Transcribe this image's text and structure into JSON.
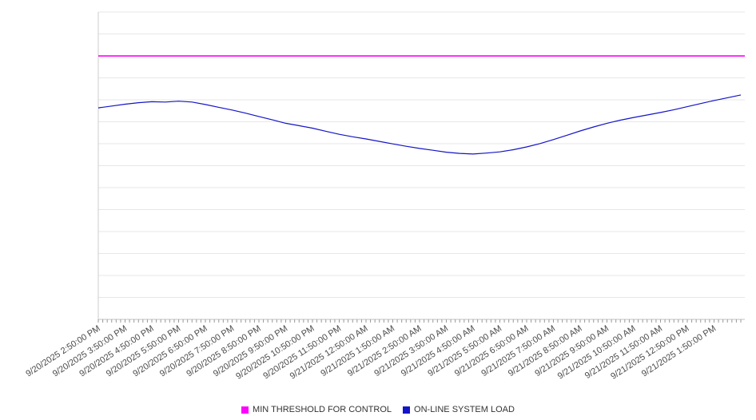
{
  "chart_data": {
    "type": "line",
    "title": "",
    "xlabel": "",
    "ylabel": "",
    "ylim": [
      0,
      100
    ],
    "grid": true,
    "legend_position": "bottom",
    "x_tick_interval_minutes": 60,
    "x_minor_ticks_per_hour": 6,
    "x_labels": [
      "9/20/2025 2:50:00 PM",
      "9/20/2025 3:50:00 PM",
      "9/20/2025 4:50:00 PM",
      "9/20/2025 5:50:00 PM",
      "9/20/2025 6:50:00 PM",
      "9/20/2025 7:50:00 PM",
      "9/20/2025 8:50:00 PM",
      "9/20/2025 9:50:00 PM",
      "9/20/2025 10:50:00 PM",
      "9/20/2025 11:50:00 PM",
      "9/21/2025 12:50:00 AM",
      "9/21/2025 1:50:00 AM",
      "9/21/2025 2:50:00 AM",
      "9/21/2025 3:50:00 AM",
      "9/21/2025 4:50:00 AM",
      "9/21/2025 5:50:00 AM",
      "9/21/2025 6:50:00 AM",
      "9/21/2025 7:50:00 AM",
      "9/21/2025 8:50:00 AM",
      "9/21/2025 9:50:00 AM",
      "9/21/2025 10:50:00 AM",
      "9/21/2025 11:50:00 AM",
      "9/21/2025 12:50:00 PM",
      "9/21/2025 1:50:00 PM"
    ],
    "series": [
      {
        "name": "MIN THRESHOLD FOR CONTROL",
        "color": "#ff00ff",
        "style": "constant-line",
        "value": 85.7
      },
      {
        "name": "ON-LINE SYSTEM LOAD",
        "color": "#1414c8",
        "style": "line",
        "point_interval_minutes": 30,
        "values": [
          68.8,
          69.4,
          70.0,
          70.5,
          70.8,
          70.7,
          71.0,
          70.7,
          69.9,
          69.0,
          68.1,
          67.1,
          66.0,
          64.9,
          63.8,
          63.0,
          62.2,
          61.2,
          60.2,
          59.4,
          58.7,
          57.9,
          57.1,
          56.3,
          55.6,
          55.0,
          54.4,
          54.0,
          53.8,
          54.1,
          54.5,
          55.2,
          56.1,
          57.2,
          58.5,
          59.9,
          61.3,
          62.6,
          63.8,
          64.8,
          65.7,
          66.5,
          67.3,
          68.2,
          69.2,
          70.2,
          71.2,
          72.1,
          73.0
        ]
      }
    ]
  },
  "legend": {
    "items": [
      {
        "label": "MIN THRESHOLD FOR CONTROL",
        "color": "#ff00ff"
      },
      {
        "label": "ON-LINE SYSTEM LOAD",
        "color": "#1414c8"
      }
    ]
  }
}
